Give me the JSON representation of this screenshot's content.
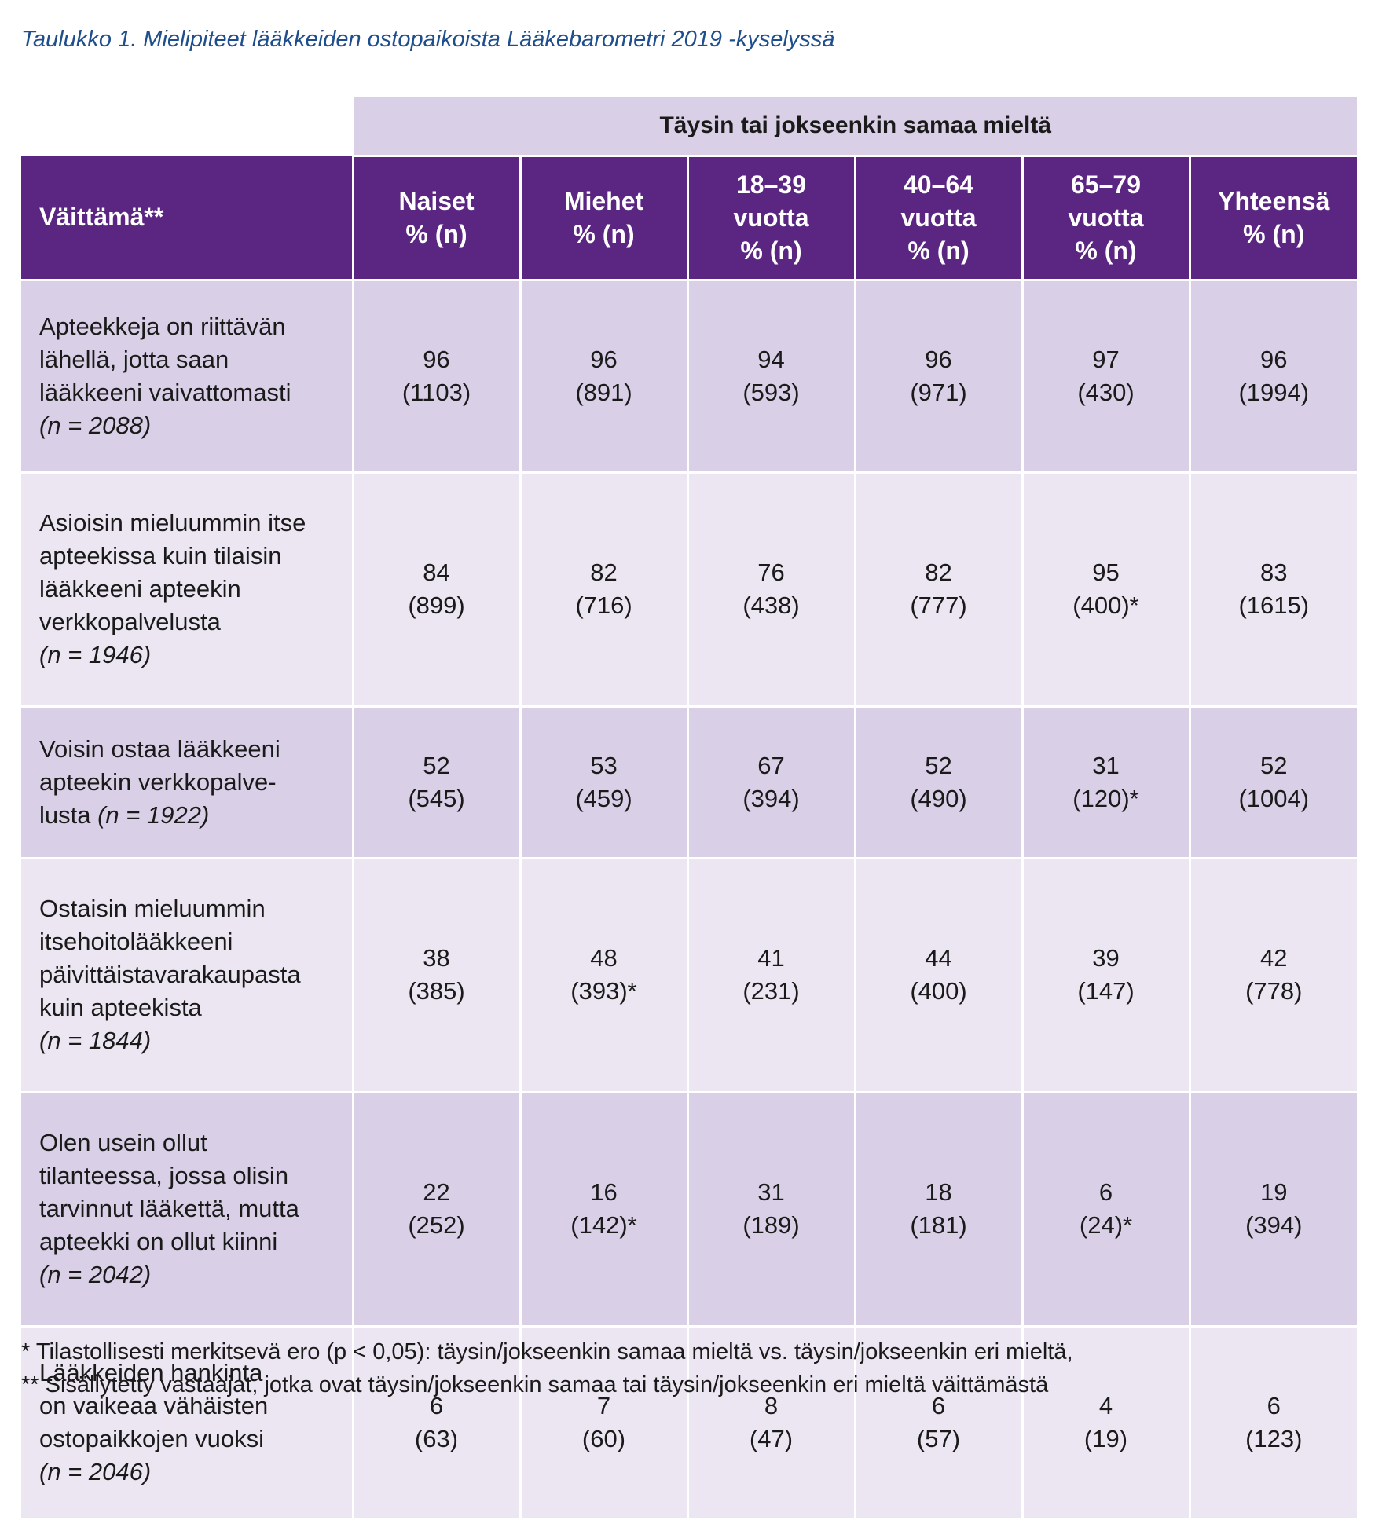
{
  "caption": "Taulukko 1. Mielipiteet lääkkeiden ostopaikoista Lääkebarometri 2019 -kyselyssä",
  "table": {
    "group_header": "Täysin tai jokseenkin samaa mieltä",
    "columns": [
      {
        "lines": [
          "Väittämä**"
        ]
      },
      {
        "lines": [
          "Naiset",
          "% (n)"
        ]
      },
      {
        "lines": [
          "Miehet",
          "% (n)"
        ]
      },
      {
        "lines": [
          "18–39",
          "vuotta",
          "% (n)"
        ]
      },
      {
        "lines": [
          "40–64",
          "vuotta",
          "% (n)"
        ]
      },
      {
        "lines": [
          "65–79",
          "vuotta",
          "% (n)"
        ]
      },
      {
        "lines": [
          "Yhteensä",
          "% (n)"
        ]
      }
    ],
    "rows": [
      {
        "statement_lines": [
          "Apteekkeja on riittävän",
          "lähellä, jotta saan",
          "lääkkeeni vaivattomasti"
        ],
        "n": "(n = 2088)",
        "values": [
          [
            "96",
            "(1103)"
          ],
          [
            "96",
            "(891)"
          ],
          [
            "94",
            "(593)"
          ],
          [
            "96",
            "(971)"
          ],
          [
            "97",
            "(430)"
          ],
          [
            "96",
            "(1994)"
          ]
        ]
      },
      {
        "statement_lines": [
          "Asioisin mieluummin itse",
          "apteekissa kuin tilaisin",
          "lääkkeeni apteekin",
          "verkkopalvelusta"
        ],
        "n": "(n = 1946)",
        "values": [
          [
            "84",
            "(899)"
          ],
          [
            "82",
            "(716)"
          ],
          [
            "76",
            "(438)"
          ],
          [
            "82",
            "(777)"
          ],
          [
            "95",
            "(400)*"
          ],
          [
            "83",
            "(1615)"
          ]
        ]
      },
      {
        "statement_lines": [
          "Voisin ostaa lääkkeeni",
          "apteekin verkkopalve-",
          "lusta"
        ],
        "n": "(n = 1922)",
        "inline_n": true,
        "values": [
          [
            "52",
            "(545)"
          ],
          [
            "53",
            "(459)"
          ],
          [
            "67",
            "(394)"
          ],
          [
            "52",
            "(490)"
          ],
          [
            "31",
            "(120)*"
          ],
          [
            "52",
            "(1004)"
          ]
        ]
      },
      {
        "statement_lines": [
          "Ostaisin mieluummin",
          "itsehoitolääkkeeni",
          "päivittäistavarakaupasta",
          "kuin apteekista"
        ],
        "n": "(n = 1844)",
        "values": [
          [
            "38",
            "(385)"
          ],
          [
            "48",
            "(393)*"
          ],
          [
            "41",
            "(231)"
          ],
          [
            "44",
            "(400)"
          ],
          [
            "39",
            "(147)"
          ],
          [
            "42",
            "(778)"
          ]
        ]
      },
      {
        "statement_lines": [
          "Olen usein ollut",
          "tilanteessa, jossa olisin",
          "tarvinnut lääkettä, mutta",
          "apteekki on ollut kiinni"
        ],
        "n": "(n = 2042)",
        "values": [
          [
            "22",
            "(252)"
          ],
          [
            "16",
            "(142)*"
          ],
          [
            "31",
            "(189)"
          ],
          [
            "18",
            "(181)"
          ],
          [
            "6",
            "(24)*"
          ],
          [
            "19",
            "(394)"
          ]
        ]
      },
      {
        "statement_lines": [
          "Lääkkeiden hankinta",
          "on vaikeaa vähäisten",
          "ostopaikkojen vuoksi"
        ],
        "n": "(n = 2046)",
        "values": [
          [
            "6",
            "(63)"
          ],
          [
            "7",
            "(60)"
          ],
          [
            "8",
            "(47)"
          ],
          [
            "6",
            "(57)"
          ],
          [
            "4",
            "(19)"
          ],
          [
            "6",
            "(123)"
          ]
        ]
      }
    ]
  },
  "footnotes": [
    "* Tilastollisesti merkitsevä ero (p < 0,05): täysin/jokseenkin samaa mieltä vs. täysin/jokseenkin eri mieltä,",
    "** Sisällytetty vastaajat, jotka ovat täysin/jokseenkin samaa tai täysin/jokseenkin eri mieltä väittämästä"
  ],
  "colors": {
    "caption": "#1f4e8c",
    "header_bg": "#5b2682",
    "group_bg": "#d9d0e7",
    "row_dark": "#d9d0e7",
    "row_light": "#ece6f2"
  }
}
